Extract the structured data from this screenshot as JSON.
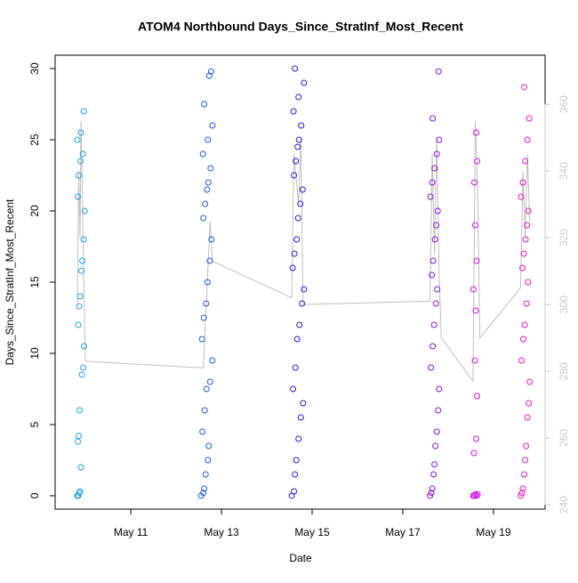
{
  "chart_data": {
    "type": "scatter",
    "title": "ATOM4 Northbound Days_Since_StratInf_Most_Recent",
    "x_label": "Date",
    "y_label": "Days_Since_StratInf_Most_Recent",
    "xlim": [
      9.33,
      20.14
    ],
    "xticks": [
      {
        "value": 11,
        "label": "May 11"
      },
      {
        "value": 13,
        "label": "May 13"
      },
      {
        "value": 15,
        "label": "May 15"
      },
      {
        "value": 17,
        "label": "May 17"
      },
      {
        "value": 19,
        "label": "May 19"
      }
    ],
    "ylim": [
      -0.94,
      30.94
    ],
    "yticks": [
      0,
      5,
      10,
      15,
      20,
      25,
      30
    ],
    "y2lim": [
      238.7,
      374.7
    ],
    "y2ticks": [
      240,
      260,
      280,
      300,
      320,
      340,
      360
    ],
    "y2_color": "#c8c8c8",
    "line_color": "#bebebe",
    "series": [
      {
        "color": "#1a9fe8",
        "x": [
          9.82,
          9.84,
          9.86,
          9.88,
          9.9,
          9.83,
          9.85,
          9.87,
          9.92,
          9.95,
          9.97,
          9.84,
          9.86,
          9.88,
          9.91,
          9.93,
          9.96,
          9.98,
          9.83,
          9.85,
          9.89,
          9.94,
          9.82,
          9.9,
          9.96
        ],
        "y": [
          0,
          0,
          0.2,
          0.3,
          2,
          3.8,
          4.2,
          6,
          8.5,
          9,
          10.5,
          12,
          13.3,
          14,
          15.8,
          16.5,
          18,
          20,
          21,
          22.5,
          23.5,
          24,
          25,
          25.5,
          27
        ]
      },
      {
        "color": "#1a5cf0",
        "x": [
          12.55,
          12.6,
          12.62,
          12.65,
          12.7,
          12.72,
          12.58,
          12.63,
          12.67,
          12.75,
          12.8,
          12.57,
          12.61,
          12.66,
          12.69,
          12.74,
          12.78,
          12.6,
          12.64,
          12.68,
          12.71,
          12.76,
          12.59,
          12.7,
          12.8,
          12.62,
          12.73,
          12.77
        ],
        "y": [
          0,
          0.2,
          0.5,
          1.5,
          2.5,
          3.5,
          4.5,
          6,
          7.5,
          8,
          9.5,
          11,
          12.5,
          13.5,
          15,
          16.5,
          18,
          19.5,
          20.5,
          21.5,
          22,
          23,
          24,
          25,
          26,
          27.5,
          29.5,
          29.8
        ]
      },
      {
        "color": "#3a12e6",
        "x": [
          14.55,
          14.6,
          14.62,
          14.65,
          14.7,
          14.75,
          14.8,
          14.58,
          14.63,
          14.67,
          14.72,
          14.78,
          14.82,
          14.57,
          14.61,
          14.66,
          14.69,
          14.74,
          14.79,
          14.6,
          14.64,
          14.68,
          14.71,
          14.76,
          14.59,
          14.7,
          14.82,
          14.62
        ],
        "y": [
          0,
          0.3,
          1.5,
          2.5,
          4,
          5.5,
          6.5,
          7.5,
          9,
          11,
          12,
          13.5,
          14.5,
          16,
          17,
          18,
          19.5,
          20.5,
          21.5,
          22.5,
          23.5,
          24.5,
          25,
          26,
          27,
          28,
          29,
          30
        ]
      },
      {
        "color": "#8a12f0",
        "x": [
          17.6,
          17.63,
          17.65,
          17.68,
          17.7,
          17.72,
          17.75,
          17.78,
          17.8,
          17.62,
          17.66,
          17.69,
          17.73,
          17.76,
          17.64,
          17.67,
          17.71,
          17.74,
          17.77,
          17.61,
          17.65,
          17.7,
          17.75,
          17.8,
          17.66,
          17.79
        ],
        "y": [
          0,
          0.2,
          0.5,
          1.5,
          2.2,
          3.5,
          4.5,
          6,
          7.5,
          9,
          10.5,
          12,
          13.5,
          14.5,
          15.5,
          16.5,
          18,
          19,
          20,
          21,
          22,
          23,
          24,
          25,
          26.5,
          29.8
        ]
      },
      {
        "color": "#d012e8",
        "x": [
          18.55,
          18.58,
          18.6,
          18.63,
          18.65,
          18.57,
          18.62,
          18.64,
          18.59,
          18.61,
          18.56,
          18.63,
          18.6,
          18.58,
          18.64,
          18.62
        ],
        "y": [
          0,
          0,
          0.1,
          0,
          0.1,
          3,
          4,
          7,
          9.5,
          13,
          14.5,
          16.5,
          19,
          22,
          23.5,
          25.5
        ]
      },
      {
        "color": "#f012c6",
        "x": [
          19.6,
          19.63,
          19.65,
          19.68,
          19.7,
          19.72,
          19.75,
          19.78,
          19.8,
          19.62,
          19.66,
          19.69,
          19.73,
          19.76,
          19.64,
          19.67,
          19.71,
          19.74,
          19.77,
          19.61,
          19.65,
          19.7,
          19.75,
          19.79,
          19.68
        ],
        "y": [
          0,
          0.2,
          0.5,
          1.5,
          2.5,
          3.5,
          5.5,
          6.5,
          8,
          9.5,
          11,
          12,
          13.5,
          15,
          16,
          17,
          18,
          19,
          20,
          21,
          22,
          23.5,
          25,
          26.5,
          28.7
        ]
      }
    ],
    "line": {
      "x": [
        9.82,
        9.85,
        9.88,
        9.9,
        9.93,
        9.97,
        10.0,
        12.6,
        12.75,
        12.8,
        14.55,
        14.6,
        14.7,
        14.75,
        14.8,
        17.6,
        17.65,
        17.7,
        17.75,
        17.8,
        17.85,
        18.55,
        18.6,
        18.65,
        18.7,
        19.6,
        19.65,
        19.7,
        19.75,
        19.8
      ],
      "y": [
        300,
        340,
        320,
        355,
        335,
        300,
        283,
        281,
        325,
        313,
        302,
        345,
        330,
        350,
        300,
        301,
        345,
        315,
        350,
        310,
        290,
        277,
        355,
        335,
        290,
        305,
        340,
        320,
        345,
        325
      ]
    }
  }
}
